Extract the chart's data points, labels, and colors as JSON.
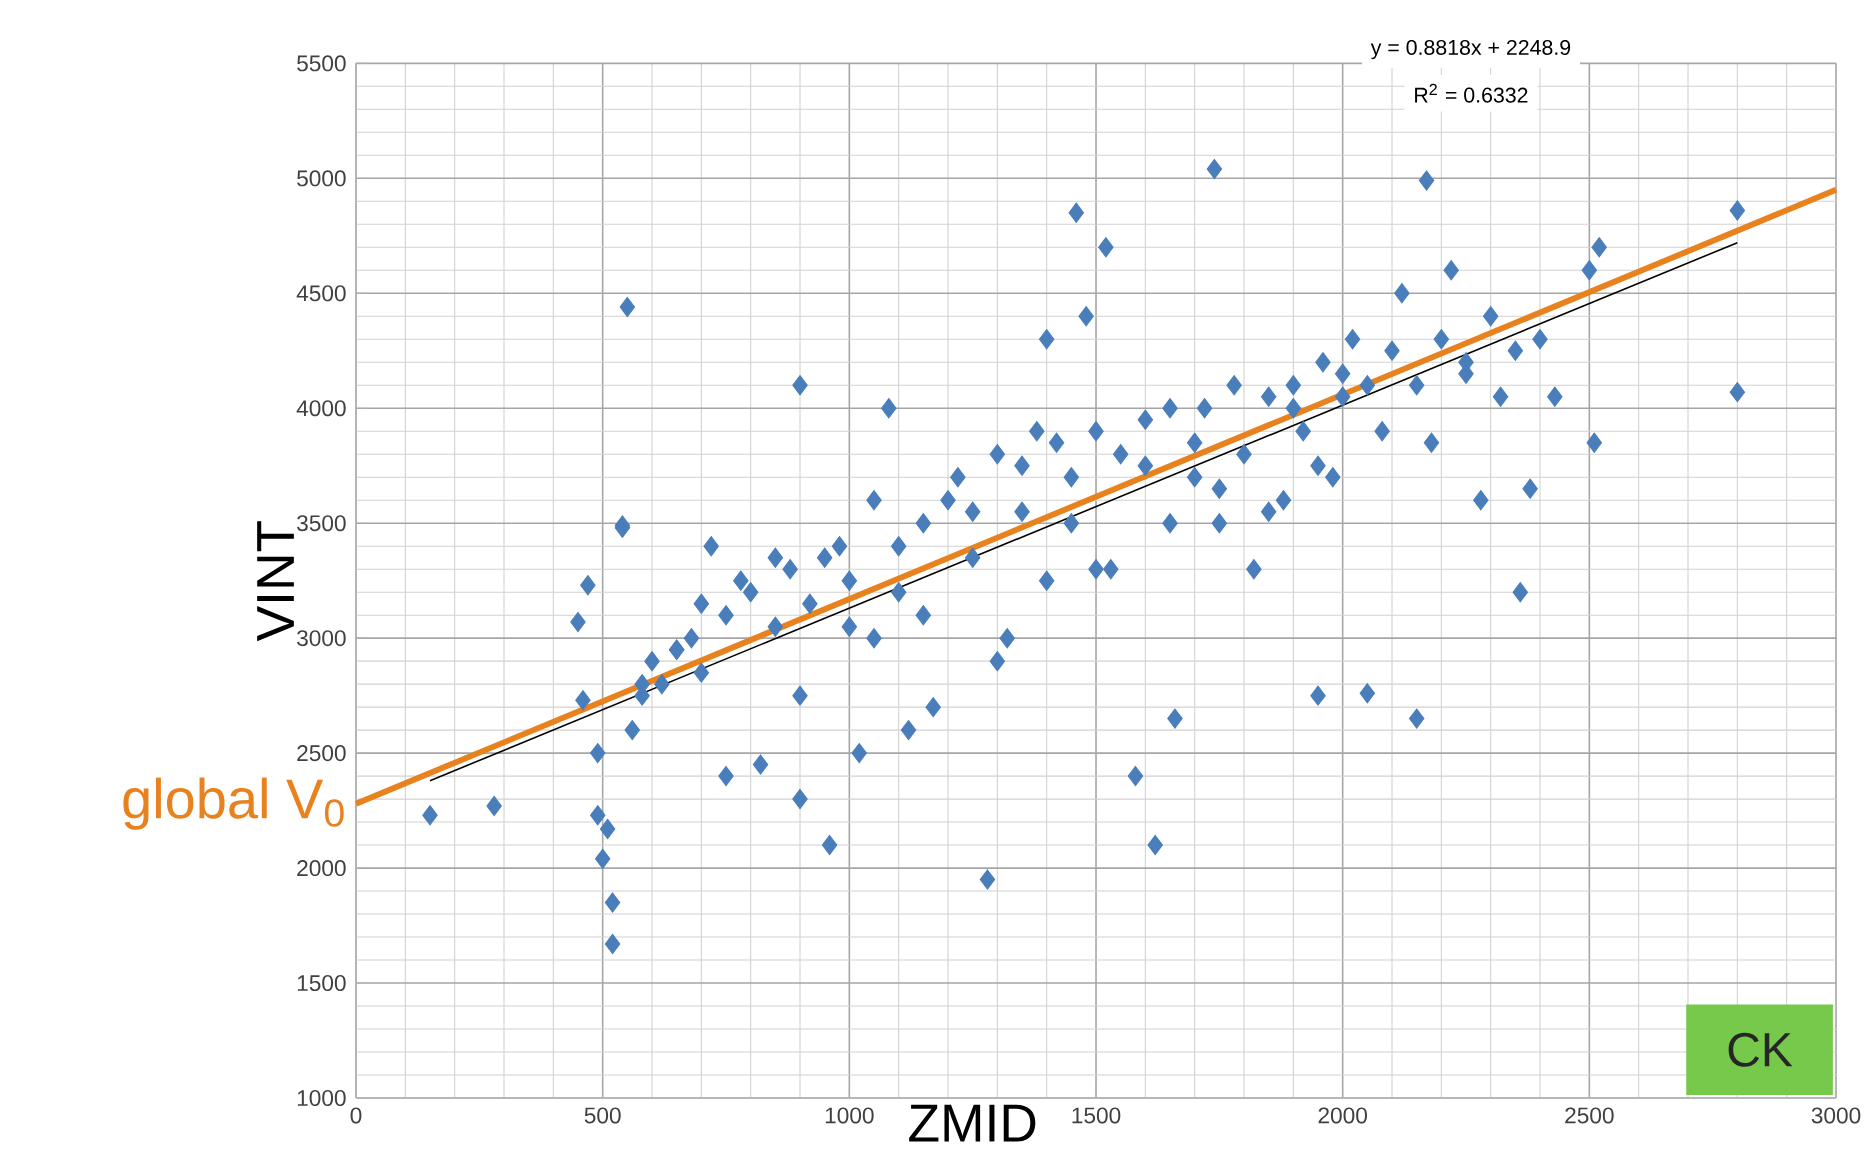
{
  "chart_data": {
    "type": "scatter",
    "xlabel": "ZMID",
    "ylabel": "VINT",
    "xlim": [
      0,
      3000
    ],
    "ylim": [
      1000,
      5500
    ],
    "xticks": [
      0,
      500,
      1000,
      1500,
      2000,
      2500,
      3000
    ],
    "yticks": [
      1000,
      1500,
      2000,
      2500,
      3000,
      3500,
      4000,
      4500,
      5000,
      5500
    ],
    "grid": true,
    "marker": "diamond",
    "annotations": [
      "y = 0.8818x + 2248.9",
      "R$^{2}$ = 0.6332",
      "CK"
    ],
    "series": [
      {
        "color": "#4a7ebb",
        "x": [
          150,
          280,
          450,
          470,
          460,
          490,
          490,
          500,
          510,
          520,
          520,
          540,
          550,
          540,
          560,
          580,
          600,
          620,
          650,
          680,
          700,
          720,
          750,
          780,
          800,
          820,
          850,
          880,
          900,
          900,
          920,
          950,
          960,
          980,
          1000,
          1020,
          1050,
          1080,
          1100,
          1120,
          1150,
          1170,
          1200,
          1220,
          1250,
          1280,
          1300,
          1320,
          1350,
          1380,
          1400,
          1420,
          1450,
          1460,
          1480,
          1500,
          1520,
          1530,
          1550,
          1580,
          1600,
          1620,
          1650,
          1660,
          1700,
          1720,
          1740,
          1750,
          1780,
          1800,
          1820,
          1850,
          1880,
          1900,
          1920,
          1950,
          1960,
          1980,
          2000,
          2020,
          2050,
          2080,
          2100,
          2120,
          2150,
          2170,
          2180,
          2200,
          2220,
          2250,
          2280,
          2300,
          2320,
          2350,
          2360,
          2380,
          2400,
          2430,
          2500,
          2510,
          2520,
          2800,
          2800,
          700,
          850,
          1000,
          1100,
          1250,
          1350,
          1400,
          1450,
          1600,
          1700,
          1900,
          2000,
          2150,
          580,
          650,
          750,
          900,
          1050,
          1150,
          1300,
          1500,
          1650,
          1750,
          1850,
          1950,
          2050,
          2250
        ],
        "values": [
          2230,
          2270,
          3070,
          3230,
          2730,
          2500,
          2230,
          2040,
          2170,
          1850,
          1670,
          3490,
          4440,
          3480,
          2600,
          2750,
          2900,
          2800,
          2950,
          3000,
          3150,
          3400,
          3100,
          3250,
          3200,
          2450,
          3050,
          3300,
          4100,
          2300,
          3150,
          3350,
          2100,
          3400,
          3250,
          2500,
          3600,
          4000,
          3400,
          2600,
          3500,
          2700,
          3600,
          3700,
          3550,
          1950,
          3800,
          3000,
          3750,
          3900,
          4300,
          3850,
          3700,
          4850,
          4400,
          3900,
          4700,
          3300,
          3800,
          2400,
          3950,
          2100,
          4000,
          2650,
          3700,
          4000,
          5040,
          3500,
          4100,
          3800,
          3300,
          4050,
          3600,
          4100,
          3900,
          2750,
          4200,
          3700,
          4050,
          4300,
          2760,
          3900,
          4250,
          4500,
          4100,
          4990,
          3850,
          4300,
          4600,
          4200,
          3600,
          4400,
          4050,
          4250,
          3200,
          3650,
          4300,
          4050,
          4600,
          3850,
          4700,
          4860,
          4070,
          2850,
          3350,
          3050,
          3200,
          3350,
          3550,
          3250,
          3500,
          3750,
          3850,
          4000,
          4150,
          2650,
          2800,
          2950,
          2400,
          2750,
          3000,
          3100,
          2900,
          3300,
          3500,
          3650,
          3550,
          3750,
          4100,
          4150
        ]
      },
      {
        "type": "line",
        "marker": "none",
        "color": "#000000",
        "x": [
          150,
          2800
        ],
        "values": [
          2380,
          4720
        ]
      },
      {
        "type": "line",
        "marker": "none",
        "name": "global V$_{0}$",
        "color": "#e8821e",
        "x": [
          0,
          3000
        ],
        "values": [
          2280,
          4950
        ]
      }
    ]
  }
}
